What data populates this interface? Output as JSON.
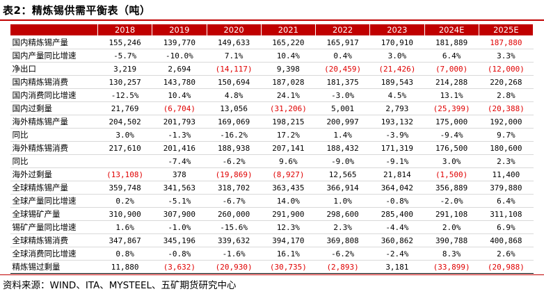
{
  "title": "表2：精炼锡供需平衡表（吨）",
  "source": "资料来源：WIND、ITA、MYSTEEL、五矿期货研究中心",
  "table": {
    "header": [
      "",
      "2018",
      "2019",
      "2020",
      "2021",
      "2022",
      "2023",
      "2024E",
      "2025E"
    ],
    "rows": [
      {
        "label": "国内精炼锡产量",
        "cells": [
          {
            "v": "155,246",
            "neg": false
          },
          {
            "v": "139,770",
            "neg": false
          },
          {
            "v": "149,633",
            "neg": false
          },
          {
            "v": "165,220",
            "neg": false
          },
          {
            "v": "165,917",
            "neg": false
          },
          {
            "v": "170,910",
            "neg": false
          },
          {
            "v": "181,889",
            "neg": false
          },
          {
            "v": "187,880",
            "neg": true
          }
        ]
      },
      {
        "label": "国内产量同比增速",
        "cells": [
          {
            "v": "-5.7%",
            "neg": false
          },
          {
            "v": "-10.0%",
            "neg": false
          },
          {
            "v": "7.1%",
            "neg": false
          },
          {
            "v": "10.4%",
            "neg": false
          },
          {
            "v": "0.4%",
            "neg": false
          },
          {
            "v": "3.0%",
            "neg": false
          },
          {
            "v": "6.4%",
            "neg": false
          },
          {
            "v": "3.3%",
            "neg": false
          }
        ]
      },
      {
        "label": "净出口",
        "cells": [
          {
            "v": "3,219",
            "neg": false
          },
          {
            "v": "2,694",
            "neg": false
          },
          {
            "v": "(14,117)",
            "neg": true
          },
          {
            "v": "9,398",
            "neg": false
          },
          {
            "v": "(20,459)",
            "neg": true
          },
          {
            "v": "(21,426)",
            "neg": true
          },
          {
            "v": "(7,000)",
            "neg": true
          },
          {
            "v": "(12,000)",
            "neg": true
          }
        ]
      },
      {
        "label": "国内精炼锡消费",
        "cells": [
          {
            "v": "130,257",
            "neg": false
          },
          {
            "v": "143,780",
            "neg": false
          },
          {
            "v": "150,694",
            "neg": false
          },
          {
            "v": "187,028",
            "neg": false
          },
          {
            "v": "181,375",
            "neg": false
          },
          {
            "v": "189,543",
            "neg": false
          },
          {
            "v": "214,288",
            "neg": false
          },
          {
            "v": "220,268",
            "neg": false
          }
        ]
      },
      {
        "label": "国内消费同比增速",
        "cells": [
          {
            "v": "-12.5%",
            "neg": false
          },
          {
            "v": "10.4%",
            "neg": false
          },
          {
            "v": "4.8%",
            "neg": false
          },
          {
            "v": "24.1%",
            "neg": false
          },
          {
            "v": "-3.0%",
            "neg": false
          },
          {
            "v": "4.5%",
            "neg": false
          },
          {
            "v": "13.1%",
            "neg": false
          },
          {
            "v": "2.8%",
            "neg": false
          }
        ]
      },
      {
        "label": "国内过剩量",
        "cells": [
          {
            "v": "21,769",
            "neg": false
          },
          {
            "v": "(6,704)",
            "neg": true
          },
          {
            "v": "13,056",
            "neg": false
          },
          {
            "v": "(31,206)",
            "neg": true
          },
          {
            "v": "5,001",
            "neg": false
          },
          {
            "v": "2,793",
            "neg": false
          },
          {
            "v": "(25,399)",
            "neg": true
          },
          {
            "v": "(20,388)",
            "neg": true
          }
        ]
      },
      {
        "label": "海外精炼锡产量",
        "cells": [
          {
            "v": "204,502",
            "neg": false
          },
          {
            "v": "201,793",
            "neg": false
          },
          {
            "v": "169,069",
            "neg": false
          },
          {
            "v": "198,215",
            "neg": false
          },
          {
            "v": "200,997",
            "neg": false
          },
          {
            "v": "193,132",
            "neg": false
          },
          {
            "v": "175,000",
            "neg": false
          },
          {
            "v": "192,000",
            "neg": false
          }
        ]
      },
      {
        "label": "同比",
        "cells": [
          {
            "v": "3.0%",
            "neg": false
          },
          {
            "v": "-1.3%",
            "neg": false
          },
          {
            "v": "-16.2%",
            "neg": false
          },
          {
            "v": "17.2%",
            "neg": false
          },
          {
            "v": "1.4%",
            "neg": false
          },
          {
            "v": "-3.9%",
            "neg": false
          },
          {
            "v": "-9.4%",
            "neg": false
          },
          {
            "v": "9.7%",
            "neg": false
          }
        ]
      },
      {
        "label": "海外精炼锡消费",
        "cells": [
          {
            "v": "217,610",
            "neg": false
          },
          {
            "v": "201,416",
            "neg": false
          },
          {
            "v": "188,938",
            "neg": false
          },
          {
            "v": "207,141",
            "neg": false
          },
          {
            "v": "188,432",
            "neg": false
          },
          {
            "v": "171,319",
            "neg": false
          },
          {
            "v": "176,500",
            "neg": false
          },
          {
            "v": "180,600",
            "neg": false
          }
        ]
      },
      {
        "label": "同比",
        "cells": [
          {
            "v": "",
            "neg": false
          },
          {
            "v": "-7.4%",
            "neg": false
          },
          {
            "v": "-6.2%",
            "neg": false
          },
          {
            "v": "9.6%",
            "neg": false
          },
          {
            "v": "-9.0%",
            "neg": false
          },
          {
            "v": "-9.1%",
            "neg": false
          },
          {
            "v": "3.0%",
            "neg": false
          },
          {
            "v": "2.3%",
            "neg": false
          }
        ]
      },
      {
        "label": "海外过剩量",
        "cells": [
          {
            "v": "(13,108)",
            "neg": true
          },
          {
            "v": "378",
            "neg": false
          },
          {
            "v": "(19,869)",
            "neg": true
          },
          {
            "v": "(8,927)",
            "neg": true
          },
          {
            "v": "12,565",
            "neg": false
          },
          {
            "v": "21,814",
            "neg": false
          },
          {
            "v": "(1,500)",
            "neg": true
          },
          {
            "v": "11,400",
            "neg": false
          }
        ]
      },
      {
        "label": "全球精炼锡产量",
        "cells": [
          {
            "v": "359,748",
            "neg": false
          },
          {
            "v": "341,563",
            "neg": false
          },
          {
            "v": "318,702",
            "neg": false
          },
          {
            "v": "363,435",
            "neg": false
          },
          {
            "v": "366,914",
            "neg": false
          },
          {
            "v": "364,042",
            "neg": false
          },
          {
            "v": "356,889",
            "neg": false
          },
          {
            "v": "379,880",
            "neg": false
          }
        ]
      },
      {
        "label": "全球产量同比增速",
        "cells": [
          {
            "v": "0.2%",
            "neg": false
          },
          {
            "v": "-5.1%",
            "neg": false
          },
          {
            "v": "-6.7%",
            "neg": false
          },
          {
            "v": "14.0%",
            "neg": false
          },
          {
            "v": "1.0%",
            "neg": false
          },
          {
            "v": "-0.8%",
            "neg": false
          },
          {
            "v": "-2.0%",
            "neg": false
          },
          {
            "v": "6.4%",
            "neg": false
          }
        ]
      },
      {
        "label": "全球锡矿产量",
        "cells": [
          {
            "v": "310,900",
            "neg": false
          },
          {
            "v": "307,900",
            "neg": false
          },
          {
            "v": "260,000",
            "neg": false
          },
          {
            "v": "291,900",
            "neg": false
          },
          {
            "v": "298,600",
            "neg": false
          },
          {
            "v": "285,400",
            "neg": false
          },
          {
            "v": "291,108",
            "neg": false
          },
          {
            "v": "311,108",
            "neg": false
          }
        ]
      },
      {
        "label": "锡矿产量同比增速",
        "cells": [
          {
            "v": "1.6%",
            "neg": false
          },
          {
            "v": "-1.0%",
            "neg": false
          },
          {
            "v": "-15.6%",
            "neg": false
          },
          {
            "v": "12.3%",
            "neg": false
          },
          {
            "v": "2.3%",
            "neg": false
          },
          {
            "v": "-4.4%",
            "neg": false
          },
          {
            "v": "2.0%",
            "neg": false
          },
          {
            "v": "6.9%",
            "neg": false
          }
        ]
      },
      {
        "label": "全球精炼锡消费",
        "cells": [
          {
            "v": "347,867",
            "neg": false
          },
          {
            "v": "345,196",
            "neg": false
          },
          {
            "v": "339,632",
            "neg": false
          },
          {
            "v": "394,170",
            "neg": false
          },
          {
            "v": "369,808",
            "neg": false
          },
          {
            "v": "360,862",
            "neg": false
          },
          {
            "v": "390,788",
            "neg": false
          },
          {
            "v": "400,868",
            "neg": false
          }
        ]
      },
      {
        "label": "全球消费同比增速",
        "cells": [
          {
            "v": "0.8%",
            "neg": false
          },
          {
            "v": "-0.8%",
            "neg": false
          },
          {
            "v": "-1.6%",
            "neg": false
          },
          {
            "v": "16.1%",
            "neg": false
          },
          {
            "v": "-6.2%",
            "neg": false
          },
          {
            "v": "-2.4%",
            "neg": false
          },
          {
            "v": "8.3%",
            "neg": false
          },
          {
            "v": "2.6%",
            "neg": false
          }
        ]
      },
      {
        "label": "精炼锡过剩量",
        "cells": [
          {
            "v": "11,880",
            "neg": false
          },
          {
            "v": "(3,632)",
            "neg": true
          },
          {
            "v": "(20,930)",
            "neg": true
          },
          {
            "v": "(30,735)",
            "neg": true
          },
          {
            "v": "(2,893)",
            "neg": true
          },
          {
            "v": "3,181",
            "neg": false
          },
          {
            "v": "(33,899)",
            "neg": true
          },
          {
            "v": "(20,988)",
            "neg": true
          }
        ]
      }
    ]
  },
  "colors": {
    "header_bg": "#c00000",
    "negative_text": "#e00000",
    "rule": "#c00000"
  }
}
